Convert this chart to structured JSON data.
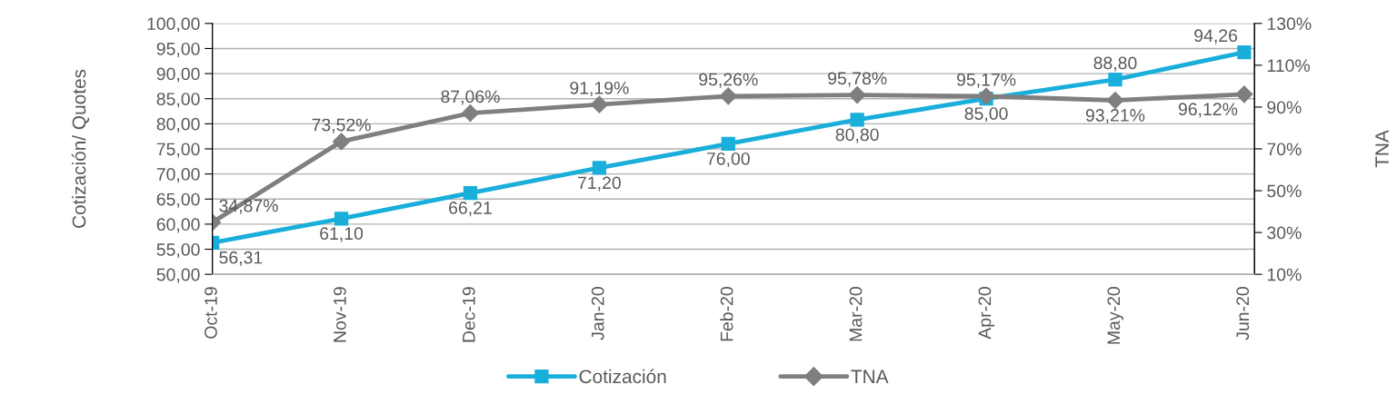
{
  "chart_data": {
    "type": "line",
    "ylabel": "Cotización/ Quotes",
    "y2label": "TNA",
    "categories": [
      "Oct-19",
      "Nov-19",
      "Dec-19",
      "Jan-20",
      "Feb-20",
      "Mar-20",
      "Apr-20",
      "May-20",
      "Jun-20"
    ],
    "series": [
      {
        "name": "Cotización",
        "color": "#1aaedb",
        "marker": "square",
        "values": [
          56.31,
          61.1,
          66.21,
          71.2,
          76.0,
          80.8,
          85.0,
          88.8,
          94.26
        ],
        "value_labels": [
          "56,31",
          "61,10",
          "66,21",
          "71,20",
          "76,00",
          "80,80",
          "85,00",
          "88,80",
          "94,26"
        ]
      },
      {
        "name": "TNA",
        "color": "#7f7f7f",
        "marker": "diamond",
        "axis": "y2",
        "values": [
          34.87,
          73.52,
          87.06,
          91.19,
          95.26,
          95.78,
          95.17,
          93.21,
          96.12
        ],
        "value_labels": [
          "34,87%",
          "73,52%",
          "87,06%",
          "91,19%",
          "95,26%",
          "95,78%",
          "95,17%",
          "93,21%",
          "96,12%"
        ]
      }
    ],
    "ylim": [
      50,
      100
    ],
    "yticks": [
      {
        "value": 50,
        "label": "50,00"
      },
      {
        "value": 55,
        "label": "55,00"
      },
      {
        "value": 60,
        "label": "60,00"
      },
      {
        "value": 65,
        "label": "65,00"
      },
      {
        "value": 70,
        "label": "70,00"
      },
      {
        "value": 75,
        "label": "75,00"
      },
      {
        "value": 80,
        "label": "80,00"
      },
      {
        "value": 85,
        "label": "85,00"
      },
      {
        "value": 90,
        "label": "90,00"
      },
      {
        "value": 95,
        "label": "95,00"
      },
      {
        "value": 100,
        "label": "100,00"
      }
    ],
    "y2lim": [
      10,
      130
    ],
    "y2ticks": [
      {
        "value": 10,
        "label": "10%"
      },
      {
        "value": 30,
        "label": "30%"
      },
      {
        "value": 50,
        "label": "50%"
      },
      {
        "value": 70,
        "label": "70%"
      },
      {
        "value": 90,
        "label": "90%"
      },
      {
        "value": 110,
        "label": "110%"
      },
      {
        "value": 130,
        "label": "130%"
      }
    ],
    "grid": "y",
    "legend": "bottom",
    "line_style": "solid"
  }
}
